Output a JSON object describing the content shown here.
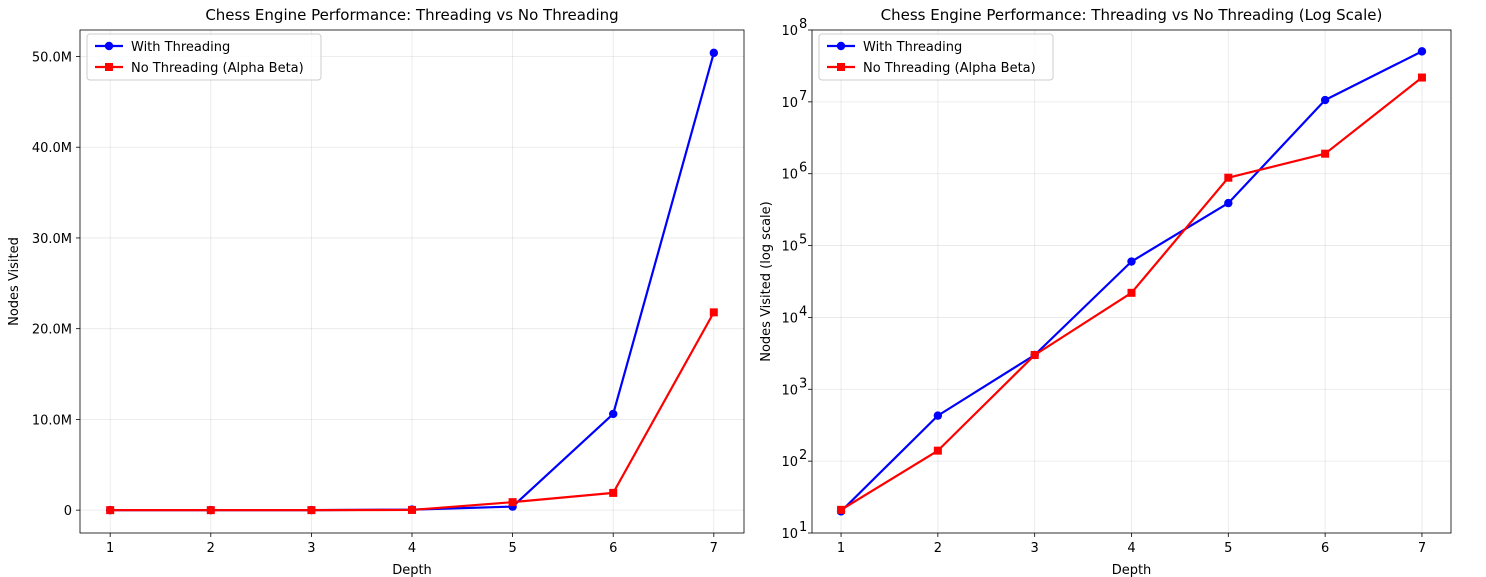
{
  "chart_data": [
    {
      "type": "line",
      "title": "Chess Engine Performance: Threading vs No Threading",
      "xlabel": "Depth",
      "ylabel": "Nodes Visited",
      "x": [
        1,
        2,
        3,
        4,
        5,
        6,
        7
      ],
      "xlim": [
        0.7,
        7.3
      ],
      "ylim": [
        -2520000,
        52920000
      ],
      "yscale": "linear",
      "xticks": [
        1,
        2,
        3,
        4,
        5,
        6,
        7
      ],
      "yticks": [
        0,
        10000000,
        20000000,
        30000000,
        40000000,
        50000000
      ],
      "ytick_labels": [
        "0",
        "10.0M",
        "20.0M",
        "30.0M",
        "40.0M",
        "50.0M"
      ],
      "grid": true,
      "legend_position": "top-left",
      "series": [
        {
          "name": "With Threading",
          "color": "#0000ff",
          "marker": "circle",
          "values": [
            20,
            430,
            3000,
            60000,
            390000,
            10600000,
            50400000
          ]
        },
        {
          "name": "No Threading (Alpha Beta)",
          "color": "#ff0000",
          "marker": "square",
          "values": [
            21,
            140,
            3000,
            22000,
            880000,
            1900000,
            21800000
          ]
        }
      ]
    },
    {
      "type": "line",
      "title": "Chess Engine Performance: Threading vs No Threading (Log Scale)",
      "xlabel": "Depth",
      "ylabel": "Nodes Visited (log scale)",
      "x": [
        1,
        2,
        3,
        4,
        5,
        6,
        7
      ],
      "xlim": [
        0.7,
        7.3
      ],
      "ylim": [
        10,
        100000000
      ],
      "yscale": "log",
      "xticks": [
        1,
        2,
        3,
        4,
        5,
        6,
        7
      ],
      "yticks": [
        10,
        100,
        1000,
        10000,
        100000,
        1000000,
        10000000,
        100000000
      ],
      "ytick_labels": [
        "10",
        "10",
        "10",
        "10",
        "10",
        "10",
        "10",
        "10"
      ],
      "ytick_exponents": [
        "1",
        "2",
        "3",
        "4",
        "5",
        "6",
        "7",
        "8"
      ],
      "grid": true,
      "legend_position": "top-left",
      "series": [
        {
          "name": "With Threading",
          "color": "#0000ff",
          "marker": "circle",
          "values": [
            20,
            430,
            3000,
            60000,
            390000,
            10600000,
            50400000
          ]
        },
        {
          "name": "No Threading (Alpha Beta)",
          "color": "#ff0000",
          "marker": "square",
          "values": [
            21,
            140,
            3000,
            22000,
            880000,
            1900000,
            21800000
          ]
        }
      ]
    }
  ]
}
